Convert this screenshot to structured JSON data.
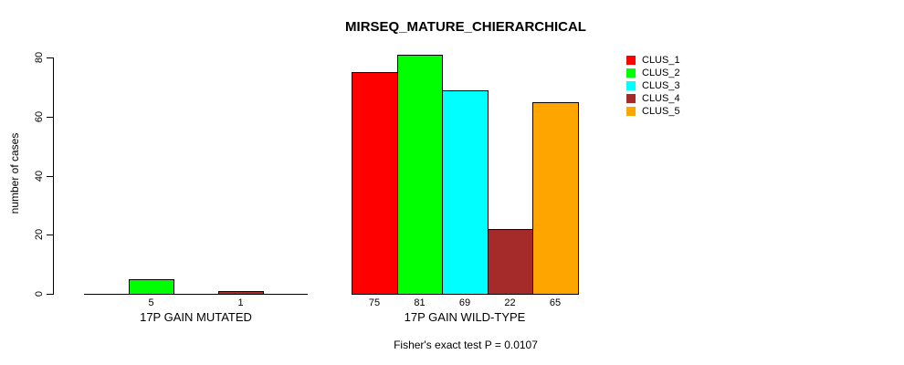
{
  "chart_data": {
    "type": "bar",
    "title": "MIRSEQ_MATURE_CHIERARCHICAL",
    "ylabel": "number of cases",
    "xlabel": "",
    "ylim": [
      0,
      80
    ],
    "yticks": [
      "0",
      "20",
      "40",
      "60",
      "80"
    ],
    "grid": false,
    "legend_position": "top-right",
    "series_names": [
      "CLUS_1",
      "CLUS_2",
      "CLUS_3",
      "CLUS_4",
      "CLUS_5"
    ],
    "series_colors": [
      "#ff0000",
      "#00ff00",
      "#00ffff",
      "#a52a2a",
      "#ffa500"
    ],
    "groups": [
      {
        "label": "17P GAIN MUTATED",
        "values": [
          0,
          5,
          0,
          1,
          0
        ],
        "bar_labels": [
          "",
          "5",
          "",
          "1",
          ""
        ]
      },
      {
        "label": "17P GAIN WILD-TYPE",
        "values": [
          75,
          81,
          69,
          22,
          65
        ],
        "bar_labels": [
          "75",
          "81",
          "69",
          "22",
          "65"
        ]
      }
    ],
    "footnote": "Fisher's exact test P = 0.0107"
  },
  "colors": {
    "background": "#ffffff",
    "axis": "#000000",
    "bar_border": "#000000",
    "text": "#000000"
  }
}
